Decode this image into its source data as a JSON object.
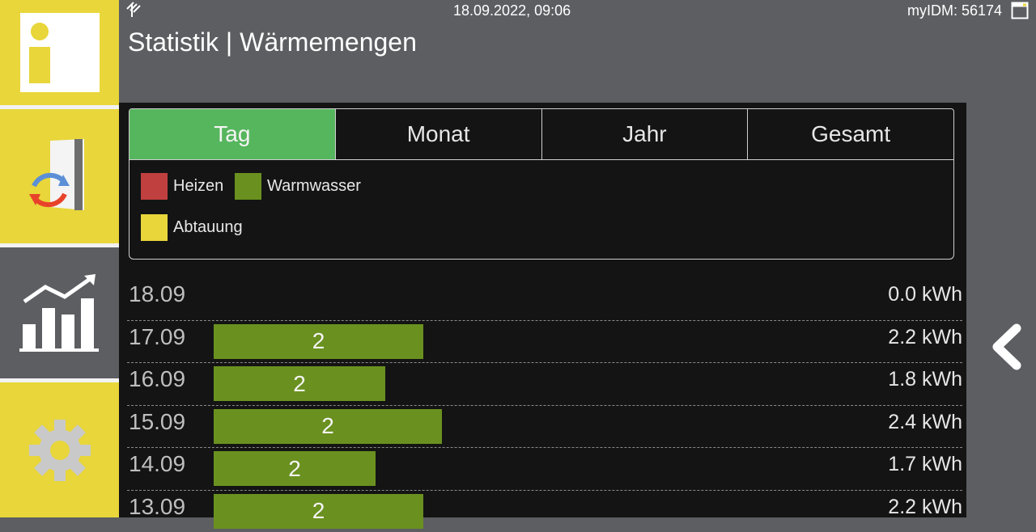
{
  "header": {
    "datetime": "18.09.2022, 09:06",
    "device_id": "myIDM: 56174",
    "title": "Statistik | Wärmemengen"
  },
  "sidebar": {
    "items": [
      {
        "name": "info",
        "icon": "info-icon"
      },
      {
        "name": "system",
        "icon": "heatpump-cycle-icon"
      },
      {
        "name": "statistics",
        "icon": "bar-chart-trend-icon",
        "active": true
      },
      {
        "name": "settings",
        "icon": "gear-icon"
      }
    ]
  },
  "tabs": [
    {
      "label": "Tag",
      "active": true
    },
    {
      "label": "Monat",
      "active": false
    },
    {
      "label": "Jahr",
      "active": false
    },
    {
      "label": "Gesamt",
      "active": false
    }
  ],
  "legend": [
    {
      "label": "Heizen",
      "color": "#c0403f"
    },
    {
      "label": "Warmwasser",
      "color": "#6a9120"
    },
    {
      "label": "Abtauung",
      "color": "#e8d63a"
    }
  ],
  "rows": [
    {
      "date": "18.09",
      "bar_label": "",
      "fraction": 0.0,
      "total": "0.0 kWh"
    },
    {
      "date": "17.09",
      "bar_label": "2",
      "fraction": 0.22,
      "total": "2.2 kWh"
    },
    {
      "date": "16.09",
      "bar_label": "2",
      "fraction": 0.18,
      "total": "1.8 kWh"
    },
    {
      "date": "15.09",
      "bar_label": "2",
      "fraction": 0.24,
      "total": "2.4 kWh"
    },
    {
      "date": "14.09",
      "bar_label": "2",
      "fraction": 0.17,
      "total": "1.7 kWh"
    },
    {
      "date": "13.09",
      "bar_label": "2",
      "fraction": 0.22,
      "total": "2.2 kWh"
    }
  ]
}
